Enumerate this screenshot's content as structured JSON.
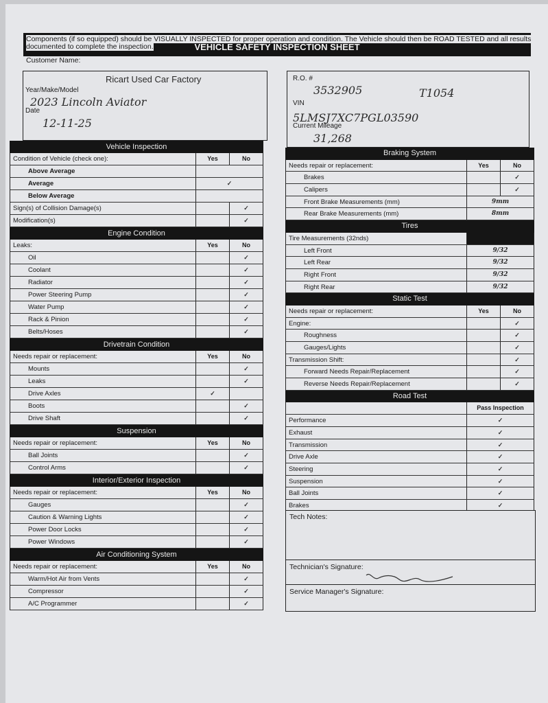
{
  "title": "VEHICLE SAFETY INSPECTION SHEET",
  "intro_line1": "Components (if so equipped) should be VISUALLY INSPECTED for proper operation and condition. The Vehicle should then be ROAD TESTED and all results",
  "intro_line2": "documented to complete the inspection.",
  "customer": {
    "label": "Customer Name:",
    "value": "Ricart Used Car Factory"
  },
  "ymm": {
    "label": "Year/Make/Model",
    "value": "2023 Lincoln Aviator"
  },
  "date": {
    "label": "Date",
    "value": "12-11-25"
  },
  "ro": {
    "label": "R.O. #",
    "value": "3532905",
    "value2": "T1054"
  },
  "vin": {
    "label": "VIN",
    "value": "5LMSJ7XC7PGL03590"
  },
  "mileage": {
    "label": "Current Mileage",
    "value": "31,268"
  },
  "left_sections": [
    {
      "title": "Vehicle Inspection",
      "header": "Condition of Vehicle (check one):",
      "cols": [
        "Yes",
        "No"
      ],
      "rows": [
        {
          "label": "Above Average",
          "indent": true,
          "bold": true,
          "merged": true,
          "mark": ""
        },
        {
          "label": "Average",
          "indent": true,
          "bold": true,
          "merged": true,
          "mark": "✓"
        },
        {
          "label": "Below Average",
          "indent": true,
          "bold": true,
          "merged": true,
          "mark": ""
        },
        {
          "label": "Sign(s) of Collision Damage(s)",
          "yes": "",
          "no": "✓"
        },
        {
          "label": "Modification(s)",
          "yes": "",
          "no": "✓"
        }
      ]
    },
    {
      "title": "Engine Condition",
      "header": "Leaks:",
      "cols": [
        "Yes",
        "No"
      ],
      "rows": [
        {
          "label": "Oil",
          "indent": true,
          "yes": "",
          "no": "✓"
        },
        {
          "label": "Coolant",
          "indent": true,
          "yes": "",
          "no": "✓"
        },
        {
          "label": "Radiator",
          "indent": true,
          "yes": "",
          "no": "✓"
        },
        {
          "label": "Power Steering Pump",
          "indent": true,
          "yes": "",
          "no": "✓"
        },
        {
          "label": "Water Pump",
          "indent": true,
          "yes": "",
          "no": "✓"
        },
        {
          "label": "Rack & Pinion",
          "indent": true,
          "yes": "",
          "no": "✓"
        },
        {
          "label": "Belts/Hoses",
          "indent": true,
          "yes": "",
          "no": "✓"
        }
      ]
    },
    {
      "title": "Drivetrain Condition",
      "header": "Needs repair or replacement:",
      "cols": [
        "Yes",
        "No"
      ],
      "rows": [
        {
          "label": "Mounts",
          "indent": true,
          "yes": "",
          "no": "✓"
        },
        {
          "label": "Leaks",
          "indent": true,
          "yes": "",
          "no": "✓"
        },
        {
          "label": "Drive Axles",
          "indent": true,
          "yes": "✓",
          "no": ""
        },
        {
          "label": "Boots",
          "indent": true,
          "yes": "",
          "no": "✓"
        },
        {
          "label": "Drive Shaft",
          "indent": true,
          "yes": "",
          "no": "✓"
        }
      ]
    },
    {
      "title": "Suspension",
      "header": "Needs repair or replacement:",
      "cols": [
        "Yes",
        "No"
      ],
      "rows": [
        {
          "label": "Ball Joints",
          "indent": true,
          "yes": "",
          "no": "✓"
        },
        {
          "label": "Control Arms",
          "indent": true,
          "yes": "",
          "no": "✓"
        }
      ]
    },
    {
      "title": "Interior/Exterior Inspection",
      "header": "Needs repair or replacement:",
      "cols": [
        "Yes",
        "No"
      ],
      "rows": [
        {
          "label": "Gauges",
          "indent": true,
          "yes": "",
          "no": "✓"
        },
        {
          "label": "Caution & Warning Lights",
          "indent": true,
          "yes": "",
          "no": "✓"
        },
        {
          "label": "Power Door Locks",
          "indent": true,
          "yes": "",
          "no": "✓"
        },
        {
          "label": "Power Windows",
          "indent": true,
          "yes": "",
          "no": "✓"
        }
      ]
    },
    {
      "title": "Air Conditioning System",
      "header": "Needs repair or replacement:",
      "cols": [
        "Yes",
        "No"
      ],
      "rows": [
        {
          "label": "Warm/Hot Air from Vents",
          "indent": true,
          "yes": "",
          "no": "✓"
        },
        {
          "label": "Compressor",
          "indent": true,
          "yes": "",
          "no": "✓"
        },
        {
          "label": "A/C Programmer",
          "indent": true,
          "yes": "",
          "no": "✓"
        }
      ]
    }
  ],
  "right_sections": [
    {
      "title": "Braking System",
      "header": "Needs repair or replacement:",
      "cols": [
        "Yes",
        "No"
      ],
      "rows": [
        {
          "label": "Brakes",
          "indent": true,
          "yes": "",
          "no": "✓"
        },
        {
          "label": "Calipers",
          "indent": true,
          "yes": "",
          "no": "✓"
        },
        {
          "label": "Front Brake Measurements (mm)",
          "indent": true,
          "value": "9mm"
        },
        {
          "label": "Rear Brake Measurements (mm)",
          "indent": true,
          "value": "8mm"
        }
      ]
    },
    {
      "title": "Tires",
      "header": "Tire Measurements (32nds)",
      "cols": [],
      "rows": [
        {
          "label": "Left Front",
          "indent": true,
          "value": "9/32"
        },
        {
          "label": "Left Rear",
          "indent": true,
          "value": "9/32"
        },
        {
          "label": "Right Front",
          "indent": true,
          "value": "9/32"
        },
        {
          "label": "Right Rear",
          "indent": true,
          "value": "9/32"
        }
      ]
    },
    {
      "title": "Static Test",
      "header": "Needs repair or replacement:",
      "cols": [
        "Yes",
        "No"
      ],
      "rows": [
        {
          "label": "Engine:",
          "yes": "",
          "no": "✓"
        },
        {
          "label": "Roughness",
          "indent": true,
          "yes": "",
          "no": "✓"
        },
        {
          "label": "Gauges/Lights",
          "indent": true,
          "yes": "",
          "no": "✓"
        },
        {
          "label": "Transmission Shift:",
          "yes": "",
          "no": "✓"
        },
        {
          "label": "Forward Needs Repair/Replacement",
          "indent": true,
          "yes": "",
          "no": "✓"
        },
        {
          "label": "Reverse Needs Repair/Replacement",
          "indent": true,
          "yes": "",
          "no": "✓"
        }
      ]
    },
    {
      "title": "Road Test",
      "header": "",
      "cols": [
        "Pass Inspection"
      ],
      "rows": [
        {
          "label": "Performance",
          "pass": "✓"
        },
        {
          "label": "Exhaust",
          "pass": "✓"
        },
        {
          "label": "Transmission",
          "pass": "✓"
        },
        {
          "label": "Drive Axle",
          "pass": "✓"
        },
        {
          "label": "Steering",
          "pass": "✓"
        },
        {
          "label": "Suspension",
          "pass": "✓"
        },
        {
          "label": "Ball Joints",
          "pass": "✓"
        },
        {
          "label": "Brakes",
          "pass": "✓"
        }
      ]
    }
  ],
  "tech_notes": {
    "label": "Tech Notes:"
  },
  "tech_signature": {
    "label": "Technician's Signature:"
  },
  "manager_signature": {
    "label": "Service Manager's Signature:"
  }
}
